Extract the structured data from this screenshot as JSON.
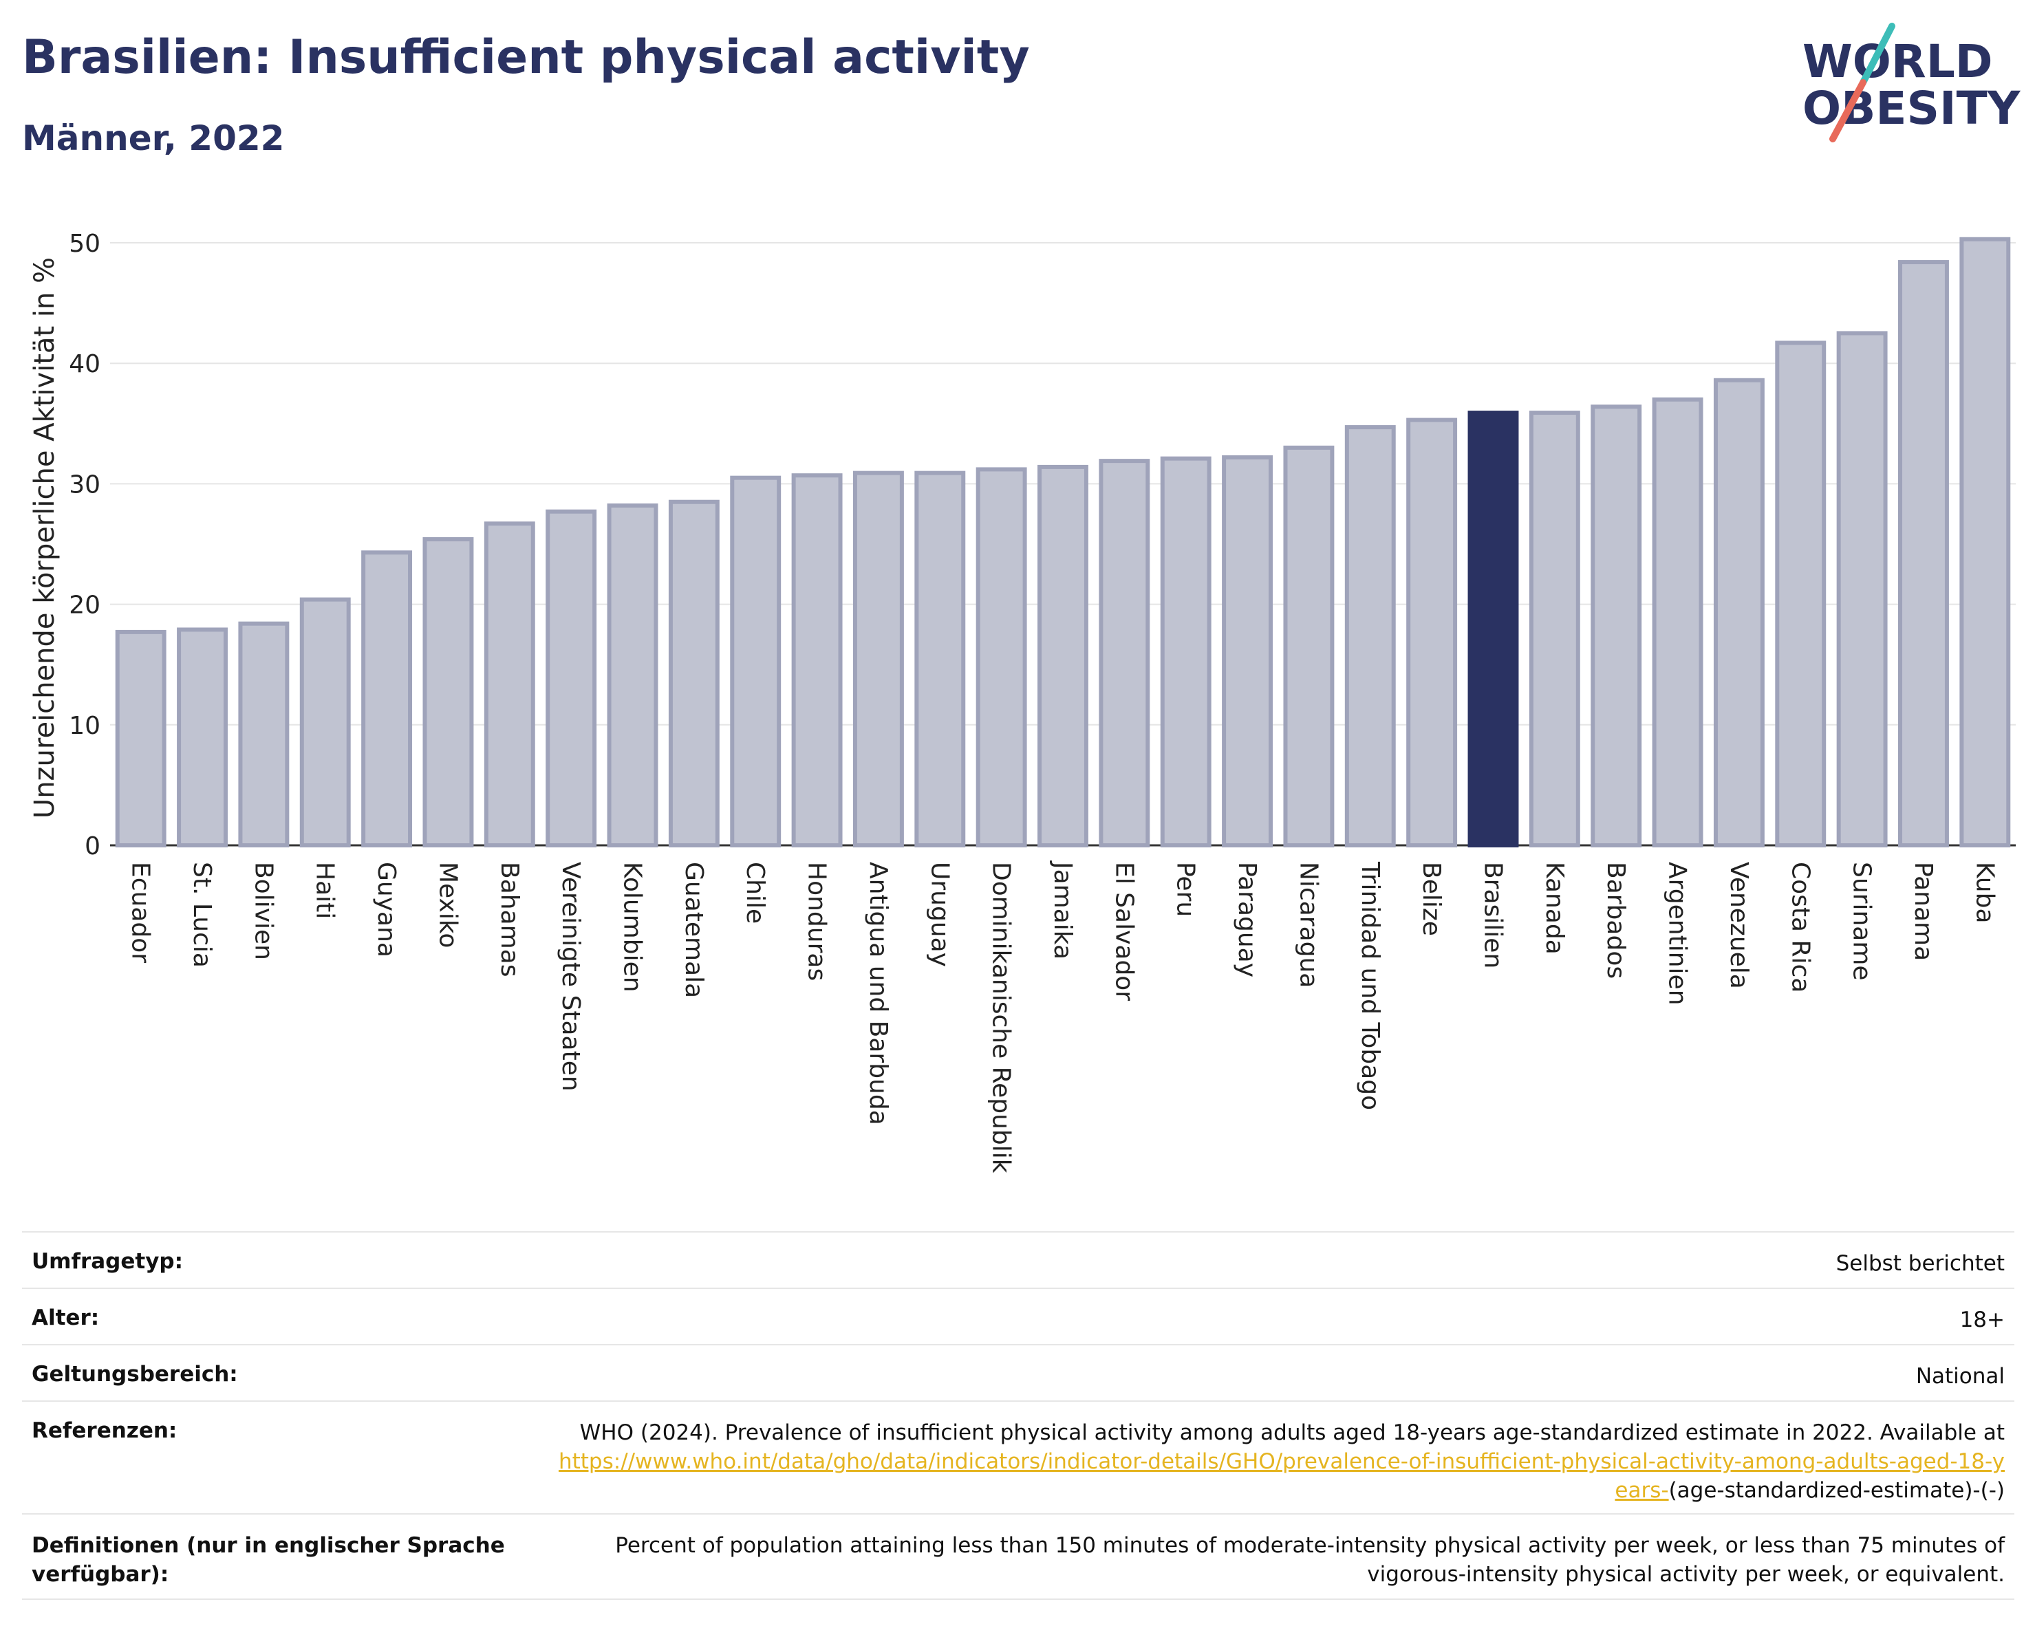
{
  "title": "Brasilien: Insufficient physical activity",
  "subtitle": "Männer, 2022",
  "logo": {
    "line1": "WORLD",
    "line2": "OBESITY",
    "accent_teal": "#3dbdb8",
    "accent_coral": "#e86a5a"
  },
  "colors": {
    "bar": "#c0c3d1",
    "bar_border": "#9fa3ba",
    "highlight": "#2a3262",
    "grid": "#e5e5e5"
  },
  "chart_data": {
    "type": "bar",
    "title": "Brasilien: Insufficient physical activity",
    "subtitle": "Männer, 2022",
    "xlabel": "",
    "ylabel": "Unzureichende körperliche Aktivität in %",
    "ylim": [
      0,
      52
    ],
    "yticks": [
      0,
      10,
      20,
      30,
      40,
      50
    ],
    "grid": true,
    "highlight": "Brasilien",
    "categories": [
      "Ecuador",
      "St. Lucia",
      "Bolivien",
      "Haiti",
      "Guyana",
      "Mexiko",
      "Bahamas",
      "Vereinigte Staaten",
      "Kolumbien",
      "Guatemala",
      "Chile",
      "Honduras",
      "Antigua und Barbuda",
      "Uruguay",
      "Dominikanische Republik",
      "Jamaika",
      "El Salvador",
      "Peru",
      "Paraguay",
      "Nicaragua",
      "Trinidad und Tobago",
      "Belize",
      "Brasilien",
      "Kanada",
      "Barbados",
      "Argentinien",
      "Venezuela",
      "Costa Rica",
      "Suriname",
      "Panama",
      "Kuba"
    ],
    "values": [
      17.7,
      17.9,
      18.4,
      20.4,
      24.3,
      25.4,
      26.7,
      27.7,
      28.2,
      28.5,
      30.5,
      30.7,
      30.9,
      30.9,
      31.2,
      31.4,
      31.9,
      32.1,
      32.2,
      33.0,
      34.7,
      35.3,
      35.9,
      35.9,
      36.4,
      37.0,
      38.6,
      41.7,
      42.5,
      48.4,
      50.3
    ]
  },
  "info": {
    "survey_type": {
      "label": "Umfragetyp:",
      "value": "Selbst berichtet"
    },
    "age": {
      "label": "Alter:",
      "value": "18+"
    },
    "scope": {
      "label": "Geltungsbereich:",
      "value": "National"
    },
    "references": {
      "label": "Referenzen:",
      "text": "WHO (2024). Prevalence of insufficient physical activity among adults aged 18-years age-standardized estimate in 2022. Available at",
      "link": "https://www.who.int/data/gho/data/indicators/indicator-details/GHO/prevalence-of-insufficient-physical-activity-among-adults-aged-18-years-",
      "suffix": "(age-standardized-estimate)-(-)"
    },
    "definitions": {
      "label": "Definitionen (nur in englischer Sprache verfügbar):",
      "value": "Percent of population attaining less than 150 minutes of moderate-intensity physical activity per week, or less than 75 minutes of vigorous-intensity physical activity per week, or equivalent."
    }
  }
}
